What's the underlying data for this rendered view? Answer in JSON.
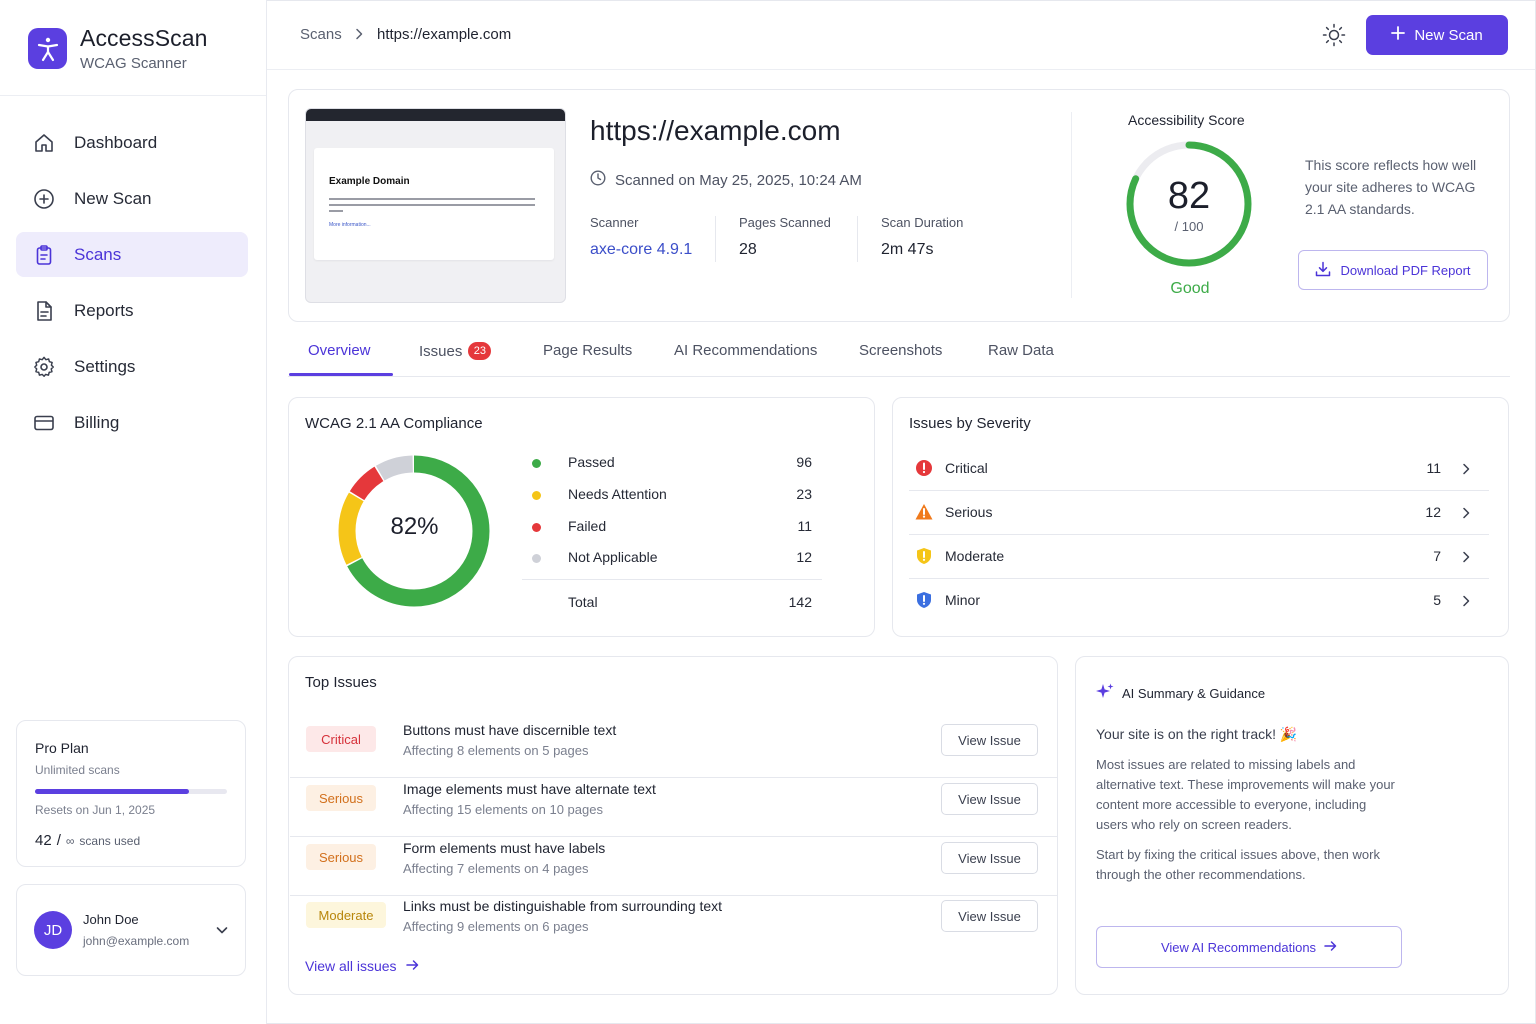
{
  "app": {
    "name": "AccessScan",
    "subtitle": "WCAG Scanner",
    "brand_color": "#5b3fe0"
  },
  "sidebar": {
    "items": [
      {
        "label": "Dashboard",
        "icon": "home-icon",
        "active": false
      },
      {
        "label": "New Scan",
        "icon": "plus-circle-icon",
        "active": false
      },
      {
        "label": "Scans",
        "icon": "clipboard-icon",
        "active": true
      },
      {
        "label": "Reports",
        "icon": "document-icon",
        "active": false
      },
      {
        "label": "Settings",
        "icon": "gear-icon",
        "active": false
      },
      {
        "label": "Billing",
        "icon": "credit-card-icon",
        "active": false
      }
    ],
    "plan": {
      "title": "Pro Plan",
      "subtitle": "Unlimited scans",
      "progress": 0.8,
      "resets": "Resets on Jun 1, 2025",
      "used_count": "42",
      "used_sep": "/",
      "used_limit": "∞",
      "used_suffix": "scans used"
    },
    "user": {
      "initials": "JD",
      "name": "John Doe",
      "email": "john@example.com"
    }
  },
  "header": {
    "breadcrumb": [
      "Scans",
      "https://example.com"
    ],
    "new_scan_label": "New Scan"
  },
  "scan": {
    "thumbnail_title": "Example Domain",
    "thumbnail_link": "More information...",
    "url": "https://example.com",
    "scanned_on": "Scanned on May 25, 2025, 10:24 AM",
    "meta": [
      {
        "label": "Scanner",
        "value": "axe-core 4.9.1"
      },
      {
        "label": "Pages Scanned",
        "value": "28"
      },
      {
        "label": "Scan Duration",
        "value": "2m 47s"
      }
    ],
    "score": {
      "title": "Accessibility Score",
      "value": 82,
      "max_label": "/ 100",
      "rating": "Good",
      "description": "This score reflects how well your site adheres to WCAG 2.1 AA standards.",
      "download_label": "Download PDF Report"
    }
  },
  "tabs": [
    {
      "label": "Overview",
      "active": true
    },
    {
      "label": "Issues",
      "badge": "23"
    },
    {
      "label": "Page Results"
    },
    {
      "label": "AI Recommendations"
    },
    {
      "label": "Screenshots"
    },
    {
      "label": "Raw Data"
    }
  ],
  "compliance": {
    "title": "WCAG 2.1 AA Compliance",
    "center_label": "82%",
    "rows": [
      {
        "name": "Passed",
        "value": 96,
        "color": "#3dab48"
      },
      {
        "name": "Needs Attention",
        "value": 23,
        "color": "#f5c518"
      },
      {
        "name": "Failed",
        "value": 11,
        "color": "#e5383b"
      },
      {
        "name": "Not Applicable",
        "value": 12,
        "color": "#cfd1d8"
      }
    ],
    "total_label": "Total",
    "total_value": "142"
  },
  "severity": {
    "title": "Issues by Severity",
    "rows": [
      {
        "name": "Critical",
        "count": "11",
        "icon": "critical-alert-icon",
        "color": "#e5383b"
      },
      {
        "name": "Serious",
        "count": "12",
        "icon": "warning-triangle-icon",
        "color": "#f07a1c"
      },
      {
        "name": "Moderate",
        "count": "7",
        "icon": "shield-alert-icon",
        "color": "#f5c518"
      },
      {
        "name": "Minor",
        "count": "5",
        "icon": "info-shield-icon",
        "color": "#3b6fe0"
      }
    ]
  },
  "top_issues": {
    "title": "Top Issues",
    "rows": [
      {
        "severity": "Critical",
        "level": "critical",
        "title": "Buttons must have discernible text",
        "sub": "Affecting 8 elements on 5 pages",
        "action": "View Issue"
      },
      {
        "severity": "Serious",
        "level": "serious",
        "title": "Image elements must have alternate text",
        "sub": "Affecting 15 elements on 10 pages",
        "action": "View Issue"
      },
      {
        "severity": "Serious",
        "level": "serious",
        "title": "Form elements must have labels",
        "sub": "Affecting 7 elements on 4 pages",
        "action": "View Issue"
      },
      {
        "severity": "Moderate",
        "level": "moderate",
        "title": "Links must be distinguishable from surrounding text",
        "sub": "Affecting 9 elements on 6 pages",
        "action": "View Issue"
      }
    ],
    "view_all": "View all issues"
  },
  "ai": {
    "title": "AI Summary & Guidance",
    "lead": "Your site is on the right track! 🎉",
    "p1": "Most issues are related to missing labels and alternative text. These improvements will make your content more accessible to everyone, including users who rely on screen readers.",
    "p2": "Start by fixing the critical issues above, then work through the other recommendations.",
    "button": "View AI Recommendations"
  }
}
